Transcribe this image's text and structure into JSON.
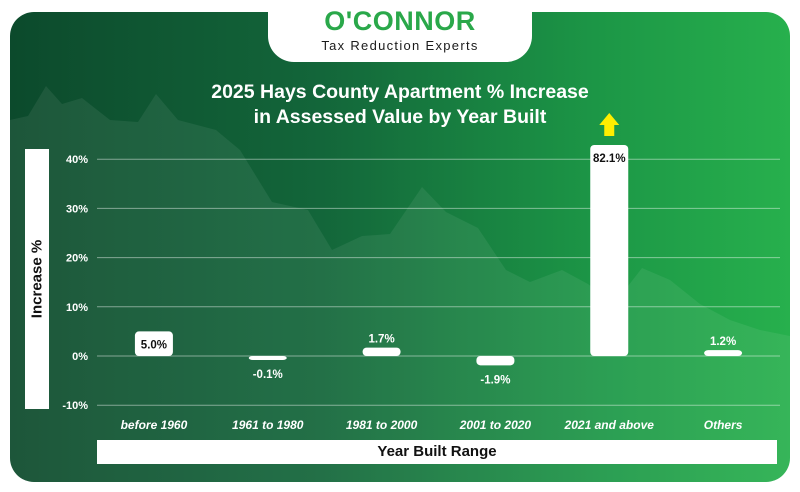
{
  "logo": {
    "name": "O'CONNOR",
    "tagline": "Tax Reduction Experts"
  },
  "colors": {
    "bar": "#ffffff",
    "accent": "#2aa84a",
    "arrow": "#ffee00",
    "text": "#ffffff"
  },
  "chart_data": {
    "type": "bar",
    "title": "2025 Hays County Apartment % Increase in Assessed Value by Year Built",
    "title_lines": [
      "2025 Hays County Apartment % Increase",
      "in Assessed Value by Year Built"
    ],
    "xlabel": "Year Built Range",
    "ylabel": "Increase %",
    "categories": [
      "before 1960",
      "1961 to 1980",
      "1981 to 2000",
      "2001 to 2020",
      "2021 and above",
      "Others"
    ],
    "values": [
      5.0,
      -0.1,
      1.7,
      -1.9,
      82.1,
      1.2
    ],
    "data_labels": [
      "5.0%",
      "-0.1%",
      "1.7%",
      "-1.9%",
      "82.1%",
      "1.2%"
    ],
    "ylim": [
      -10,
      40
    ],
    "yticks": [
      40,
      30,
      20,
      10,
      0,
      -10
    ],
    "ytick_labels": [
      "40%",
      "30%",
      "20%",
      "10%",
      "0%",
      "-10%"
    ],
    "grid": true,
    "clipped_bar_indicator": "up-arrow above 82.1% bar"
  }
}
